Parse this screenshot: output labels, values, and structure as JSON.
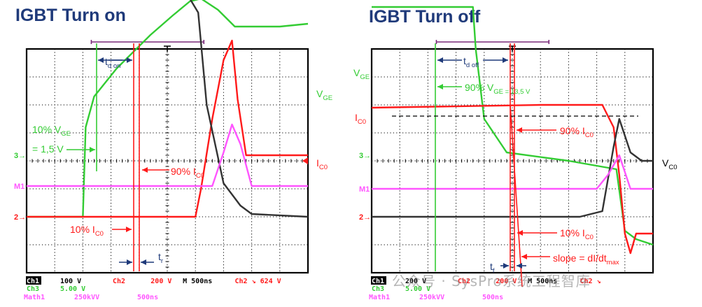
{
  "titles": {
    "turn_on": "IGBT Turn on",
    "turn_off": "IGBT Turn off"
  },
  "colors": {
    "title": "#1f3a7a",
    "vge": "#33cc33",
    "ic": "#ff1a1a",
    "vce": "#333333",
    "math": "#ff55ff",
    "annotation": "#1f3a7a"
  },
  "watermark": "公众号 · SysPro系统工程智库",
  "chart_data": [
    {
      "type": "line",
      "title": "IGBT Turn on",
      "x_unit": "ns",
      "x_per_div": 500,
      "divisions": 10,
      "series": [
        {
          "name": "VGE",
          "scale": "5.00 V/div",
          "x": [
            0,
            1000,
            1050,
            1200,
            1600,
            2200,
            2600,
            2900,
            3100,
            3400,
            3700,
            4500,
            5000
          ],
          "y_div": [
            -2.0,
            -2.0,
            1.2,
            2.3,
            3.3,
            4.5,
            5.2,
            5.7,
            5.8,
            5.4,
            4.8,
            4.8,
            4.9
          ]
        },
        {
          "name": "IC",
          "scale": "200 V/div",
          "x": [
            0,
            3000,
            3100,
            3300,
            3500,
            3650,
            3750,
            3900,
            5000
          ],
          "y_div": [
            -2.0,
            -2.0,
            -1.0,
            1.5,
            3.6,
            4.3,
            2.2,
            0.2,
            0.2
          ]
        },
        {
          "name": "VCE",
          "scale": "100 V/div",
          "x": [
            0,
            2900,
            3050,
            3200,
            3500,
            3800,
            4000,
            5000
          ],
          "y_div": [
            5.8,
            5.8,
            5.3,
            2.0,
            -0.8,
            -1.6,
            -1.9,
            -2.0
          ]
        },
        {
          "name": "Math1",
          "scale": "250kVV/div",
          "x": [
            0,
            3300,
            3500,
            3650,
            3800,
            4000,
            5000
          ],
          "y_div": [
            -0.9,
            -0.9,
            0.3,
            1.3,
            0.6,
            -0.9,
            -0.9
          ]
        }
      ],
      "labels": {
        "vge": "V_GE",
        "ic": "I_C0",
        "td": "t_d on",
        "tr": "t_r",
        "p10_vge_line1": "10% V_GE",
        "p10_vge_line2": "= 1,5 V",
        "p90_ic": "90% I_C0",
        "p10_ic": "10% I_C0"
      },
      "status": {
        "ch1_label": "Ch1",
        "ch1_scale": "100 V",
        "ch2_label": "Ch2",
        "ch2_scale": "200 V",
        "ch3_label": "Ch3",
        "ch3_scale": "5.00 V",
        "timebase": "M  500ns",
        "trigger": "Ch2 ↘  624 V",
        "math_label": "Math1",
        "math_scale": "250kVV",
        "math_time": "500ns"
      }
    },
    {
      "type": "line",
      "title": "IGBT Turn off",
      "x_unit": "ns",
      "x_per_div": 500,
      "divisions": 10,
      "series": [
        {
          "name": "VGE",
          "scale": "5.00 V/div",
          "x": [
            0,
            1800,
            1850,
            2000,
            2400,
            3500,
            4350,
            4500,
            4700,
            5000
          ],
          "y_div": [
            5.5,
            5.5,
            4.0,
            1.5,
            0.3,
            0.0,
            -0.3,
            -2.5,
            -2.8,
            -3.0
          ]
        },
        {
          "name": "IC",
          "scale": "200 V/div",
          "x": [
            0,
            3000,
            4100,
            4300,
            4400,
            4500,
            4600,
            4700,
            5000
          ],
          "y_div": [
            1.9,
            2.0,
            2.0,
            1.2,
            -0.5,
            -2.6,
            -3.3,
            -2.6,
            -2.6
          ]
        },
        {
          "name": "VCE",
          "scale": "200 V/div",
          "x": [
            0,
            3700,
            4100,
            4300,
            4400,
            4600,
            4800,
            5000
          ],
          "y_div": [
            -2.0,
            -2.0,
            -1.8,
            0.5,
            1.5,
            0.3,
            0.0,
            0.0
          ]
        },
        {
          "name": "Math1",
          "scale": "250kVV/div",
          "x": [
            0,
            4000,
            4200,
            4400,
            4600,
            5000
          ],
          "y_div": [
            -1.0,
            -1.0,
            -0.5,
            0.2,
            -1.0,
            -1.0
          ]
        }
      ],
      "labels": {
        "vge": "V_GE",
        "ic": "I_C0",
        "vce": "V_C0",
        "td": "t_d off",
        "tf": "t_f",
        "p90_vge": "90% V_GE = 13,5 V",
        "p90_ic": "90% I_C0",
        "p10_ic": "10% I_C0",
        "slope": "slope = dI/dt_max"
      },
      "status": {
        "ch1_label": "Ch1",
        "ch1_scale": "200 V",
        "ch2_label": "Ch2",
        "ch2_scale": "200 V",
        "ch3_label": "Ch3",
        "ch3_scale": "5.00 V",
        "timebase": "M  500ns",
        "trigger": "Ch2 ↘",
        "math_label": "Math1",
        "math_scale": "250kVV",
        "math_time": "500ns"
      }
    }
  ]
}
